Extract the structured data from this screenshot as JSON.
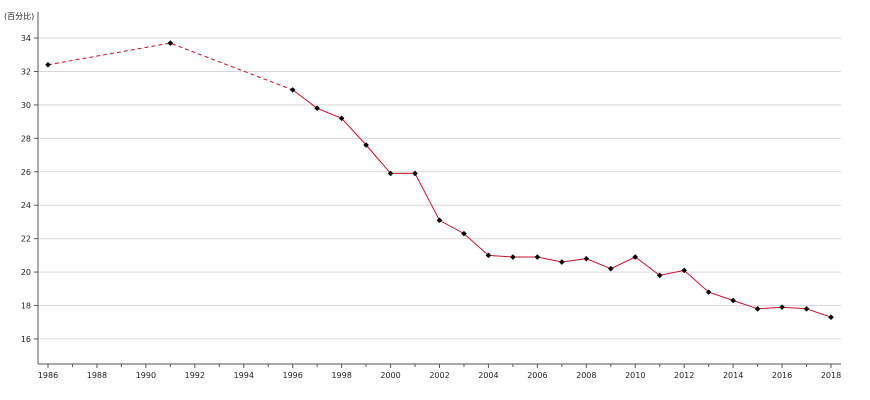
{
  "chart_data": {
    "type": "line",
    "unit_label": "(百分比)",
    "title": "",
    "xlabel": "",
    "ylabel": "",
    "xlim": [
      1986,
      2018
    ],
    "ylim": [
      14.5,
      35.2
    ],
    "y_ticks": [
      16,
      18,
      20,
      22,
      24,
      26,
      28,
      30,
      32,
      34
    ],
    "x_ticks": [
      1986,
      1988,
      1990,
      1992,
      1994,
      1996,
      1998,
      2000,
      2002,
      2004,
      2006,
      2008,
      2010,
      2012,
      2014,
      2016,
      2018
    ],
    "grid": "horizontal",
    "line_color": "#c8102e",
    "marker_color": "#000000",
    "segments": [
      {
        "style": "dashed",
        "x": [
          1986,
          1991,
          1996
        ]
      },
      {
        "style": "solid",
        "x": [
          1996,
          1997,
          1998,
          1999,
          2000,
          2001,
          2002,
          2003,
          2004,
          2005,
          2006,
          2007,
          2008,
          2009,
          2010,
          2011,
          2012,
          2013,
          2014,
          2015,
          2016,
          2017,
          2018
        ]
      }
    ],
    "series": [
      {
        "x": [
          1986,
          1991,
          1996,
          1997,
          1998,
          1999,
          2000,
          2001,
          2002,
          2003,
          2004,
          2005,
          2006,
          2007,
          2008,
          2009,
          2010,
          2011,
          2012,
          2013,
          2014,
          2015,
          2016,
          2017,
          2018
        ],
        "values": [
          32.4,
          33.7,
          30.9,
          29.8,
          29.2,
          27.6,
          25.9,
          25.9,
          23.1,
          22.3,
          21.0,
          20.9,
          20.9,
          20.6,
          20.8,
          20.2,
          20.9,
          19.8,
          20.1,
          18.8,
          18.3,
          17.8,
          17.9,
          17.8,
          17.3
        ]
      }
    ]
  }
}
